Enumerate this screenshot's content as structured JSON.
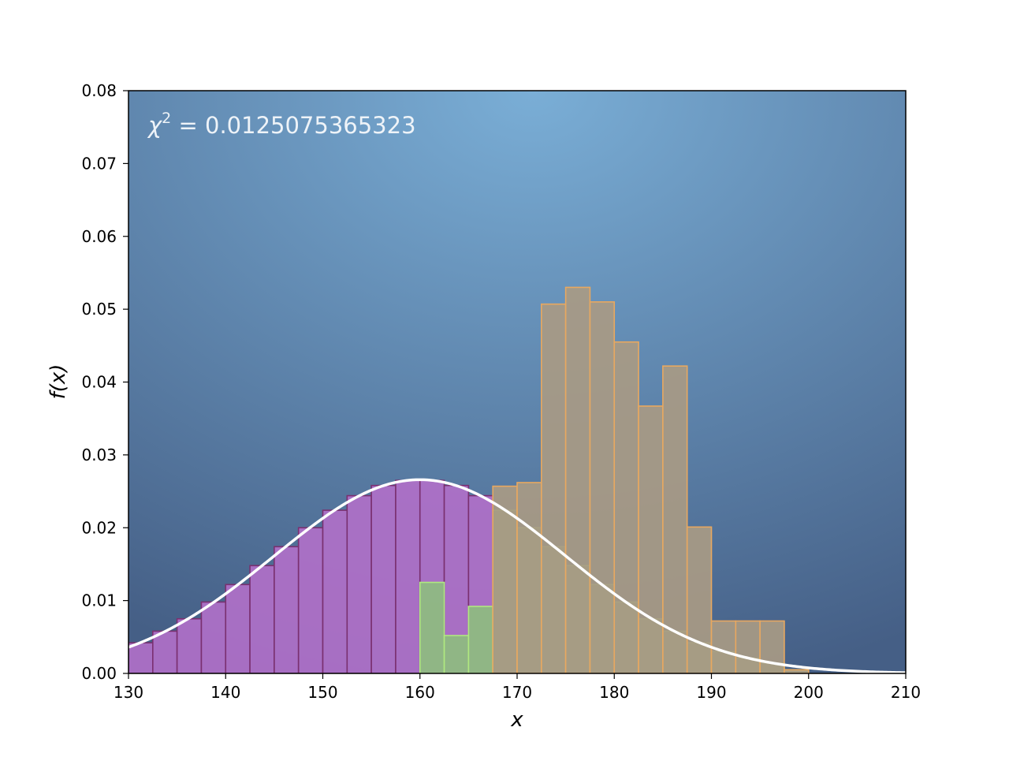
{
  "chart_data": {
    "type": "bar",
    "title": "",
    "annotation": {
      "prefix": "χ",
      "sup": "2",
      "text": " = 0.0125075365323"
    },
    "xlabel": "x",
    "ylabel": "f(x)",
    "xlim": [
      130,
      210
    ],
    "ylim": [
      0,
      0.08
    ],
    "xticks": [
      "130",
      "140",
      "150",
      "160",
      "170",
      "180",
      "190",
      "200",
      "210"
    ],
    "yticks": [
      "0.00",
      "0.01",
      "0.02",
      "0.03",
      "0.04",
      "0.05",
      "0.06",
      "0.07",
      "0.08"
    ],
    "bin_width": 2.5,
    "series": [
      {
        "color": "#b070c8",
        "edge": "#7a3070",
        "bins": [
          {
            "x": 130.0,
            "y": 0.0042
          },
          {
            "x": 132.5,
            "y": 0.0058
          },
          {
            "x": 135.0,
            "y": 0.0075
          },
          {
            "x": 137.5,
            "y": 0.0098
          },
          {
            "x": 140.0,
            "y": 0.0122
          },
          {
            "x": 142.5,
            "y": 0.0148
          },
          {
            "x": 145.0,
            "y": 0.0174
          },
          {
            "x": 147.5,
            "y": 0.02
          },
          {
            "x": 150.0,
            "y": 0.0224
          },
          {
            "x": 152.5,
            "y": 0.0244
          },
          {
            "x": 155.0,
            "y": 0.0258
          },
          {
            "x": 157.5,
            "y": 0.0265
          },
          {
            "x": 160.0,
            "y": 0.0265
          },
          {
            "x": 162.5,
            "y": 0.0258
          },
          {
            "x": 165.0,
            "y": 0.0244
          }
        ]
      },
      {
        "color": "#8ebc80",
        "edge": "#b0e880",
        "bins": [
          {
            "x": 160.0,
            "y": 0.0125
          },
          {
            "x": 162.5,
            "y": 0.0052
          },
          {
            "x": 165.0,
            "y": 0.0092
          },
          {
            "x": 167.5,
            "y": 0.0224
          },
          {
            "x": 170.0,
            "y": 0.02
          },
          {
            "x": 172.5,
            "y": 0.0174
          },
          {
            "x": 175.0,
            "y": 0.0148
          },
          {
            "x": 177.5,
            "y": 0.0122
          },
          {
            "x": 180.0,
            "y": 0.0098
          },
          {
            "x": 182.5,
            "y": 0.0075
          },
          {
            "x": 185.0,
            "y": 0.0058
          },
          {
            "x": 187.5,
            "y": 0.0042
          },
          {
            "x": 190.0,
            "y": 0.003
          },
          {
            "x": 192.5,
            "y": 0.0021
          },
          {
            "x": 195.0,
            "y": 0.0014
          },
          {
            "x": 197.5,
            "y": 0.0005
          }
        ]
      },
      {
        "color": "#a89a84",
        "edge": "#e8a860",
        "bins": [
          {
            "x": 167.5,
            "y": 0.0257
          },
          {
            "x": 170.0,
            "y": 0.0262
          },
          {
            "x": 172.5,
            "y": 0.0507
          },
          {
            "x": 175.0,
            "y": 0.053
          },
          {
            "x": 177.5,
            "y": 0.051
          },
          {
            "x": 180.0,
            "y": 0.0455
          },
          {
            "x": 182.5,
            "y": 0.0367
          },
          {
            "x": 185.0,
            "y": 0.0422
          },
          {
            "x": 187.5,
            "y": 0.0201
          },
          {
            "x": 190.0,
            "y": 0.0072
          },
          {
            "x": 192.5,
            "y": 0.0072
          },
          {
            "x": 195.0,
            "y": 0.0072
          },
          {
            "x": 197.5,
            "y": 0.0005
          }
        ]
      }
    ],
    "curve": {
      "type": "normal-pdf",
      "mean": 160,
      "sd": 15,
      "color": "#ffffff"
    },
    "grid": false,
    "colors": {
      "background_light": "#7aaed6",
      "background_dark": "#455f86"
    }
  }
}
